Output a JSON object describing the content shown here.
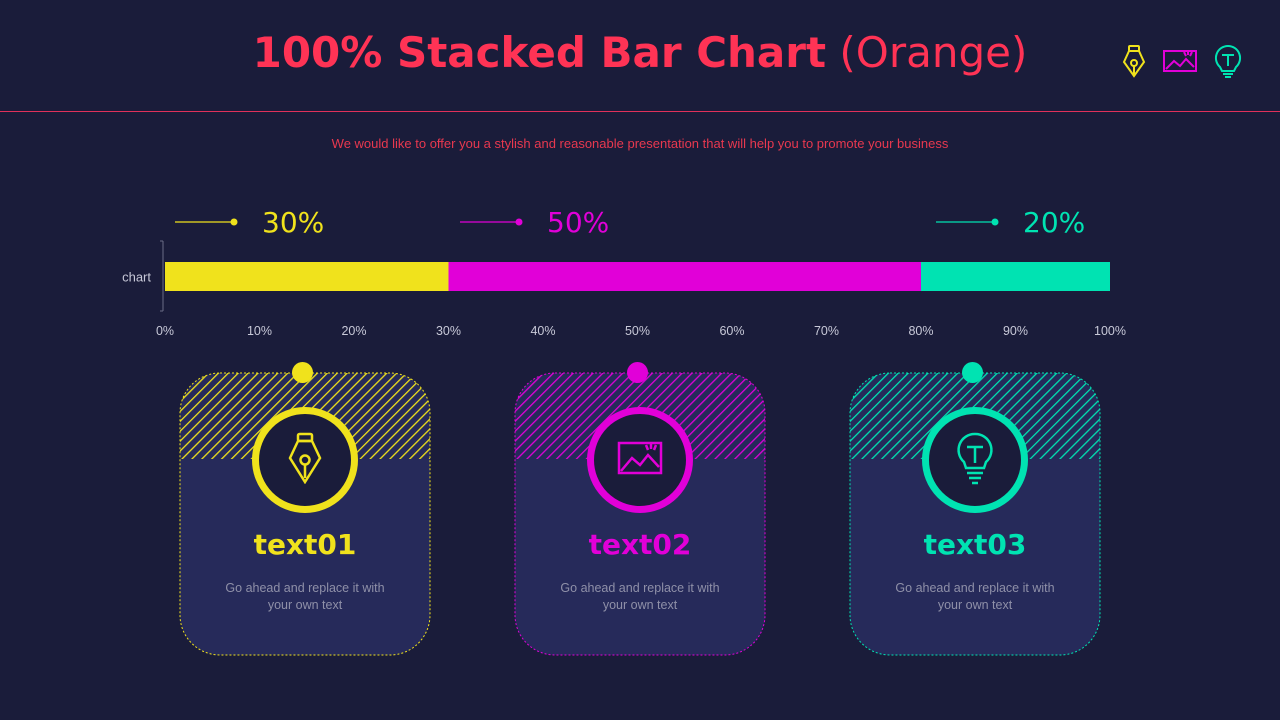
{
  "header": {
    "title_bold": "100% Stacked Bar Chart",
    "title_light": "(Orange)",
    "subtitle": "We would like to offer you a stylish and reasonable presentation that will help you to promote your business"
  },
  "top_icons": [
    "pen-nib-icon",
    "image-icon",
    "lightbulb-icon"
  ],
  "colors": {
    "yellow": "#f0e21c",
    "magenta": "#e100d8",
    "teal": "#00e3b2",
    "title": "#ff3355",
    "background": "#1a1c3a"
  },
  "chart_data": {
    "type": "bar",
    "orientation": "horizontal",
    "stacked": "100%",
    "categories": [
      "chart"
    ],
    "series": [
      {
        "name": "text01",
        "values": [
          30
        ],
        "label": "30%",
        "color": "#f0e21c"
      },
      {
        "name": "text02",
        "values": [
          50
        ],
        "label": "50%",
        "color": "#e100d8"
      },
      {
        "name": "text03",
        "values": [
          20
        ],
        "label": "20%",
        "color": "#00e3b2"
      }
    ],
    "xlim": [
      0,
      100
    ],
    "xticks": [
      "0%",
      "10%",
      "20%",
      "30%",
      "40%",
      "50%",
      "60%",
      "70%",
      "80%",
      "90%",
      "100%"
    ],
    "title": "100% Stacked Bar Chart (Orange)",
    "xlabel": "",
    "ylabel": ""
  },
  "cards": [
    {
      "title": "text01",
      "body": "Go ahead and replace it with your own text",
      "color": "#f0e21c",
      "icon": "pen-nib-icon"
    },
    {
      "title": "text02",
      "body": "Go ahead and replace it with your own text",
      "color": "#e100d8",
      "icon": "image-icon"
    },
    {
      "title": "text03",
      "body": "Go ahead and replace it with your own text",
      "color": "#00e3b2",
      "icon": "lightbulb-icon"
    }
  ]
}
